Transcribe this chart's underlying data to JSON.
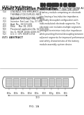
{
  "bg_color": "#f5f5f0",
  "page_bg": "#ffffff",
  "barcode_color": "#333333",
  "header_left_1": "(12) United States",
  "header_left_2": "Patent Application Publication",
  "header_right_1": "(10) Pub. No.: US 2019/0273756 A1",
  "header_right_2": "(43) Pub. Date:    Oct. 29, 2019",
  "title_lines": [
    "LOW-INDUCTIVE IMPEDANCE,",
    "THERMALLY DECOUPLED, RADII-MODULATED",
    "ELECTRODE CORE"
  ],
  "diagram_label": "100",
  "segment_labels": [
    "100a",
    "100b",
    "100c",
    "100d",
    "100e",
    "100f",
    "100g",
    "100h",
    "100i"
  ],
  "segment_color": "#d8d8d8",
  "segment_border": "#777777",
  "outer_border": "#555555",
  "fig_num": "FIG. 1A",
  "text_color": "#333333",
  "abstract_text": "A battery module comprising an electrode\ncore having a low-inductive impedance,\nthermally decoupled configuration with\nradii-modulated electrode segments. The\nelectrode core includes multiple segments\narranged to minimize inductive impedance\nwhile providing thermal decoupling between\nadjacent segments for improved performance\nand safety characteristics of the battery\nmodule assembly system device.",
  "left_info": [
    [
      "(54)",
      "LOW-INDUCTIVE IMPEDANCE,\nTHERMALLY DECOUPLED, RADII-\nMODULATED ELECTRODE CORE"
    ],
    [
      "(71)",
      "Applicant: XYZ Corp., City, ST (US)"
    ],
    [
      "(72)",
      "Inventor: First Last, City, ST (US)"
    ],
    [
      "(21)",
      "Appl. No.: 16/123,456"
    ],
    [
      "(22)",
      "Filed:     Mar. 18, 2018"
    ],
    [
      "(60)",
      "Provisional application No. 62/000,000"
    ],
    [
      "(51)",
      "Int. Cl. H01M 10/04 (2006.01)"
    ],
    [
      "(52)",
      "U.S. Cl. CPC H01M 10/04"
    ]
  ]
}
